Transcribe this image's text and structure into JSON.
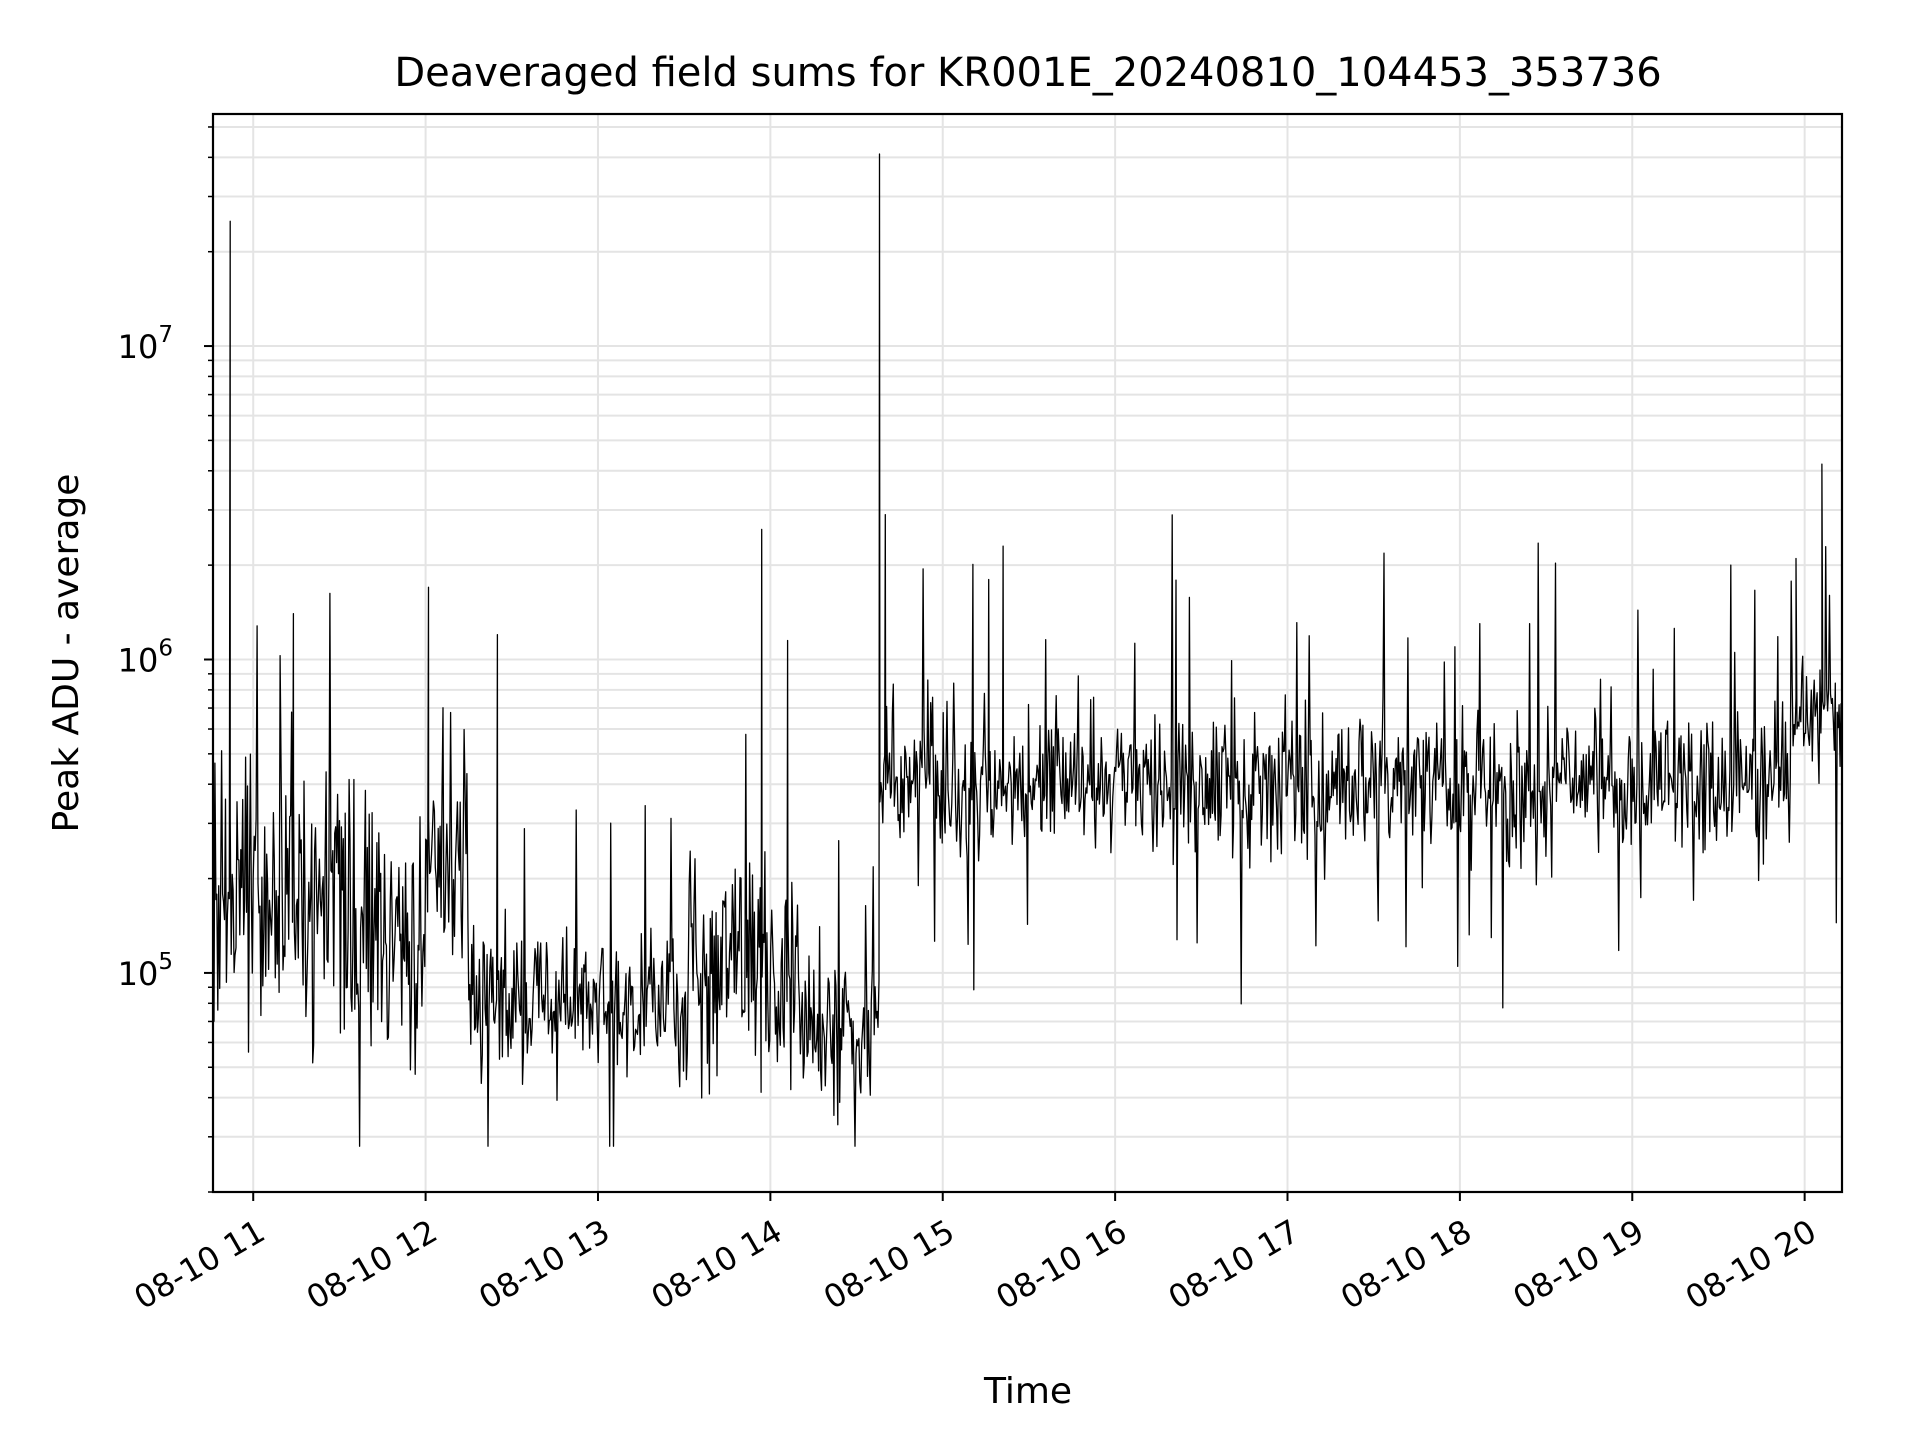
{
  "chart_data": {
    "type": "line",
    "title": "Deaveraged field sums for KR001E_20240810_104453_353736",
    "xlabel": "Time",
    "ylabel": "Peak ADU - average",
    "x_range": [
      "2024-08-10 10:46",
      "2024-08-10 20:13"
    ],
    "y_range": [
      20000,
      55000000
    ],
    "y_scale": "log",
    "grid": true,
    "line_color": "#000000",
    "x_ticks": [
      "08-10 11",
      "08-10 12",
      "08-10 13",
      "08-10 14",
      "08-10 15",
      "08-10 16",
      "08-10 17",
      "08-10 18",
      "08-10 19",
      "08-10 20"
    ],
    "y_ticks": [
      {
        "value": 100000,
        "base": "10",
        "exp": "5"
      },
      {
        "value": 1000000,
        "base": "10",
        "exp": "6"
      },
      {
        "value": 10000000,
        "base": "10",
        "exp": "7"
      }
    ],
    "segments": [
      {
        "start": "2024-08-10 10:46",
        "end": "2024-08-10 11:30",
        "level": 180000,
        "spread": 2.2
      },
      {
        "start": "2024-08-10 11:30",
        "end": "2024-08-10 12:00",
        "level": 140000,
        "spread": 2.3
      },
      {
        "start": "2024-08-10 12:00",
        "end": "2024-08-10 12:15",
        "level": 220000,
        "spread": 2.2
      },
      {
        "start": "2024-08-10 12:15",
        "end": "2024-08-10 13:30",
        "level": 80000,
        "spread": 1.6
      },
      {
        "start": "2024-08-10 13:30",
        "end": "2024-08-10 14:10",
        "level": 110000,
        "spread": 1.9
      },
      {
        "start": "2024-08-10 14:10",
        "end": "2024-08-10 14:38",
        "level": 65000,
        "spread": 1.6
      },
      {
        "start": "2024-08-10 14:38",
        "end": "2024-08-10 19:55",
        "level": 400000,
        "spread": 1.55
      },
      {
        "start": "2024-08-10 19:55",
        "end": "2024-08-10 20:13",
        "level": 650000,
        "spread": 1.5
      }
    ],
    "spikes": [
      {
        "x": "2024-08-10 10:52",
        "y": 25000000
      },
      {
        "x": "2024-08-10 11:14",
        "y": 1400000
      },
      {
        "x": "2024-08-10 12:01",
        "y": 1700000
      },
      {
        "x": "2024-08-10 12:25",
        "y": 1200000
      },
      {
        "x": "2024-08-10 13:57",
        "y": 2600000
      },
      {
        "x": "2024-08-10 14:06",
        "y": 1150000
      },
      {
        "x": "2024-08-10 14:38",
        "y": 41000000
      },
      {
        "x": "2024-08-10 14:40",
        "y": 2900000
      },
      {
        "x": "2024-08-10 15:21",
        "y": 2300000
      },
      {
        "x": "2024-08-10 15:16",
        "y": 1800000
      },
      {
        "x": "2024-08-10 19:57",
        "y": 2100000
      },
      {
        "x": "2024-08-10 20:06",
        "y": 4200000
      }
    ]
  }
}
